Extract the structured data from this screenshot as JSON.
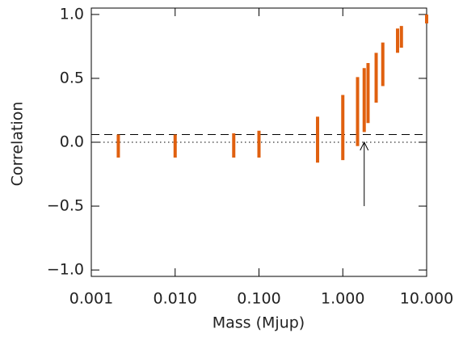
{
  "chart_data": {
    "type": "rangebar",
    "xlabel": "Mass (Mjup)",
    "ylabel": "Correlation",
    "xscale": "log",
    "color": "#e0600f",
    "x": [
      0.0021,
      0.01,
      0.05,
      0.1,
      0.5,
      1.0,
      1.5,
      1.8,
      2.0,
      2.5,
      3.0,
      4.5,
      5.0,
      10.0
    ],
    "lower": [
      -0.12,
      -0.12,
      -0.12,
      -0.12,
      -0.16,
      -0.14,
      -0.03,
      0.08,
      0.15,
      0.31,
      0.44,
      0.7,
      0.74,
      0.93
    ],
    "upper": [
      0.06,
      0.06,
      0.07,
      0.09,
      0.2,
      0.37,
      0.51,
      0.58,
      0.62,
      0.7,
      0.78,
      0.89,
      0.91,
      1.0
    ],
    "xlim": [
      0.001,
      10.0
    ],
    "xticks": [
      0.001,
      {
        "value": 0.01,
        "label": "0.010"
      },
      {
        "value": 0.1,
        "label": "0.100"
      },
      {
        "value": 1,
        "label": "1.000"
      },
      {
        "value": 10,
        "label": "10.000"
      }
    ],
    "ylim": [
      -1.05,
      1.05
    ],
    "yticks": [
      {
        "value": -1,
        "label": "−1.0"
      },
      {
        "value": -0.5,
        "label": "−0.5"
      },
      {
        "value": 0,
        "label": "0.0"
      },
      {
        "value": 0.5,
        "label": "0.5"
      },
      {
        "value": 1,
        "label": "1.0"
      }
    ],
    "hlines": [
      {
        "value": 0.06,
        "style": "dashed"
      },
      {
        "value": 0,
        "style": "dotted"
      }
    ],
    "arrow": {
      "x": 1.8,
      "from": -0.5,
      "to": 0.0
    }
  }
}
